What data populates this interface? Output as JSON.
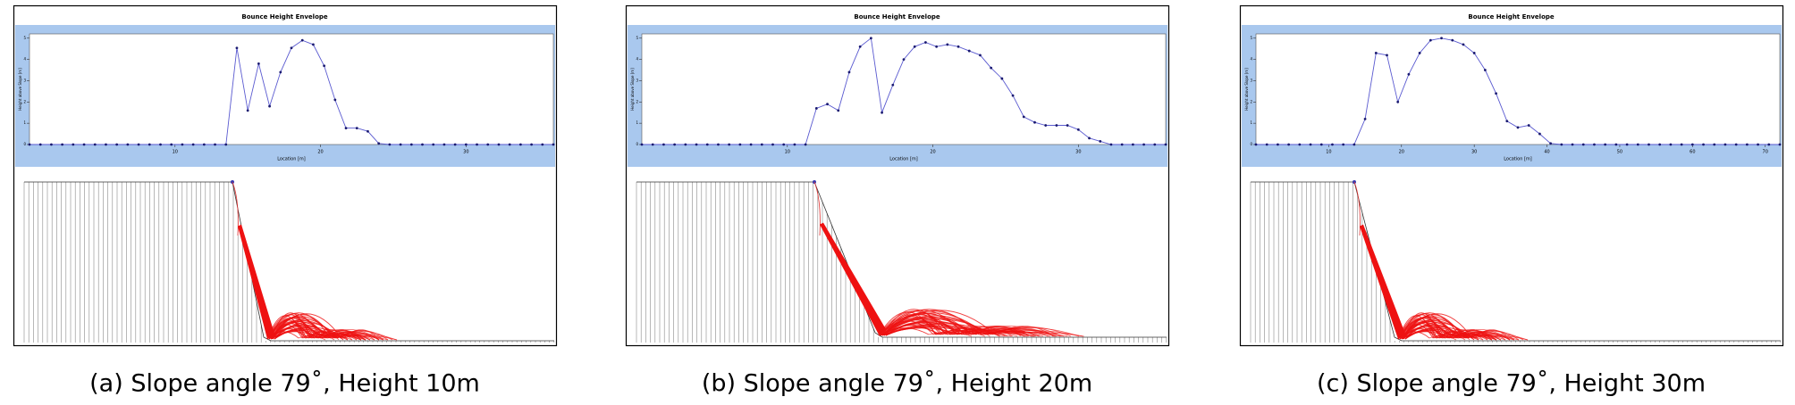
{
  "chart_data": [
    {
      "type": "line",
      "title": "Bounce Height Envelope",
      "xlabel": "Location [m]",
      "ylabel": "Height above Slope [m]",
      "caption": "(a) Slope angle 79˚, Height 10m",
      "color": "#5a5ad0",
      "x": [
        0,
        0.75,
        1.5,
        2.25,
        3,
        3.75,
        4.5,
        5.25,
        6,
        6.75,
        7.5,
        8.25,
        9,
        9.75,
        10.5,
        11.25,
        12,
        12.75,
        13.5,
        14.25,
        15,
        15.75,
        16.5,
        17.25,
        18,
        18.75,
        19.5,
        20.25,
        21,
        21.75,
        22.5,
        23.25,
        24,
        24.75,
        25.5,
        26.25,
        27,
        27.75,
        28.5,
        29.25,
        30,
        30.75,
        31.5,
        32.25,
        33,
        33.75,
        34.5,
        35.25,
        36
      ],
      "values": [
        0,
        0,
        0,
        0,
        0,
        0,
        0,
        0,
        0,
        0,
        0,
        0,
        0,
        0,
        0,
        0,
        0,
        0,
        0,
        4.54,
        1.6,
        3.8,
        1.8,
        3.4,
        4.54,
        4.9,
        4.7,
        3.7,
        2.1,
        0.77,
        0.77,
        0.62,
        0.05,
        0,
        0,
        0,
        0,
        0,
        0,
        0,
        0,
        0,
        0,
        0,
        0,
        0,
        0,
        0,
        0
      ],
      "xlim": [
        0,
        36
      ],
      "xticks": [
        10,
        20,
        30
      ],
      "ylim": [
        0,
        5.2
      ],
      "yticks": [
        0,
        1,
        2,
        3,
        4,
        5
      ]
    },
    {
      "type": "line",
      "title": "Bounce Height Envelope",
      "xlabel": "Location [m]",
      "ylabel": "Height above Slope [m]",
      "caption": "(b) Slope angle 79˚, Height 20m",
      "color": "#5a5ad0",
      "x": [
        0,
        0.75,
        1.5,
        2.25,
        3,
        3.75,
        4.5,
        5.25,
        6,
        6.75,
        7.5,
        8.25,
        9,
        9.75,
        10.5,
        11.25,
        12,
        12.75,
        13.5,
        14.25,
        15,
        15.75,
        16.5,
        17.25,
        18,
        18.75,
        19.5,
        20.25,
        21,
        21.75,
        22.5,
        23.25,
        24,
        24.75,
        25.5,
        26.25,
        27,
        27.75,
        28.5,
        29.25,
        30,
        30.75,
        31.5,
        32.25,
        33,
        33.75,
        34.5,
        35.25,
        36
      ],
      "values": [
        0,
        0,
        0,
        0,
        0,
        0,
        0,
        0,
        0,
        0,
        0,
        0,
        0,
        0,
        0,
        0,
        1.7,
        1.9,
        1.6,
        3.4,
        4.6,
        5.0,
        1.5,
        2.8,
        4.0,
        4.6,
        4.8,
        4.6,
        4.7,
        4.6,
        4.4,
        4.2,
        3.6,
        3.1,
        2.3,
        1.3,
        1.04,
        0.9,
        0.9,
        0.9,
        0.7,
        0.3,
        0.15,
        0,
        0,
        0,
        0,
        0,
        0
      ],
      "xlim": [
        0,
        36
      ],
      "xticks": [
        10,
        20,
        30
      ],
      "ylim": [
        0,
        5.2
      ],
      "yticks": [
        0,
        1,
        2,
        3,
        4,
        5
      ]
    },
    {
      "type": "line",
      "title": "Bounce Height Envelope",
      "xlabel": "Location [m]",
      "ylabel": "Height above Slope [m]",
      "caption": "(c) Slope angle 79˚, Height 30m",
      "color": "#5a5ad0",
      "x": [
        0,
        1.5,
        3,
        4.5,
        6,
        7.5,
        9,
        10.5,
        12,
        13.5,
        15,
        16.5,
        18,
        19.5,
        21,
        22.5,
        24,
        25.5,
        27,
        28.5,
        30,
        31.5,
        33,
        34.5,
        36,
        37.5,
        39,
        40.5,
        42,
        43.5,
        45,
        46.5,
        48,
        49.5,
        51,
        52.5,
        54,
        55.5,
        57,
        58.5,
        60,
        61.5,
        63,
        64.5,
        66,
        67.5,
        69,
        70.5,
        72
      ],
      "values": [
        0,
        0,
        0,
        0,
        0,
        0,
        0,
        0,
        0,
        0,
        1.2,
        4.3,
        4.2,
        2.0,
        3.3,
        4.3,
        4.9,
        5.0,
        4.9,
        4.7,
        4.3,
        3.5,
        2.4,
        1.1,
        0.8,
        0.9,
        0.5,
        0.05,
        0,
        0,
        0,
        0,
        0,
        0,
        0,
        0,
        0,
        0,
        0,
        0,
        0,
        0,
        0,
        0,
        0,
        0,
        0,
        0,
        0
      ],
      "xlim": [
        0,
        72
      ],
      "xticks": [
        10,
        20,
        30,
        40,
        50,
        60,
        70
      ],
      "ylim": [
        0,
        5.2
      ],
      "yticks": [
        0,
        1,
        2,
        3,
        4,
        5
      ]
    }
  ]
}
